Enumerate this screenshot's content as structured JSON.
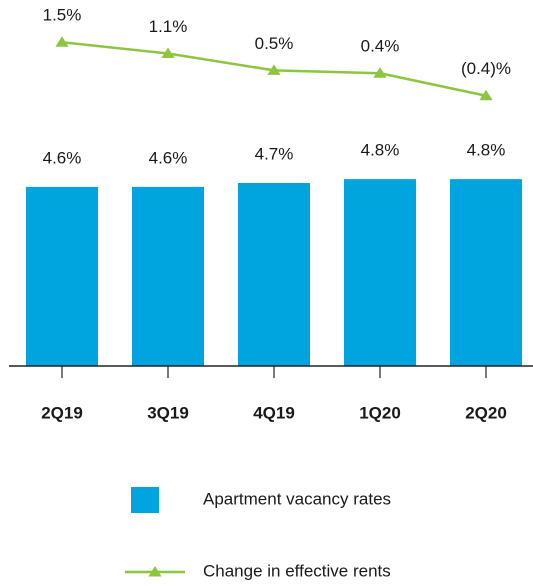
{
  "chart_data": {
    "type": "bar_line",
    "categories": [
      "2Q19",
      "3Q19",
      "4Q19",
      "1Q20",
      "2Q20"
    ],
    "ylim": [
      0,
      9.4
    ],
    "y2lim": [
      -10,
      3
    ],
    "series": [
      {
        "name": "Apartment vacancy rates",
        "type": "bar",
        "color": "#00a5df",
        "values": [
          4.6,
          4.6,
          4.7,
          4.8,
          4.8
        ],
        "value_labels": [
          "4.6%",
          "4.6%",
          "4.7%",
          "4.8%",
          "4.8%"
        ]
      },
      {
        "name": "Change in effective rents",
        "type": "line",
        "axis": "y2",
        "color": "#8cc63f",
        "values": [
          1.5,
          1.1,
          0.5,
          0.4,
          -0.4
        ],
        "value_labels": [
          "1.5%",
          "1.1%",
          "0.5%",
          "0.4%",
          "(0.4)%"
        ]
      }
    ]
  }
}
